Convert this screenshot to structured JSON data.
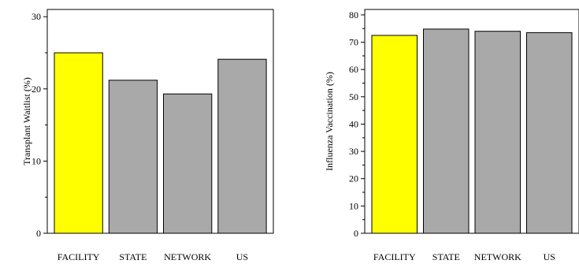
{
  "chart_data": [
    {
      "type": "bar",
      "categories": [
        "FACILITY",
        "STATE",
        "NETWORK",
        "US"
      ],
      "values": [
        25.0,
        21.2,
        19.3,
        24.1
      ],
      "colors": [
        "#ffff00",
        "#a9a9a9",
        "#a9a9a9",
        "#a9a9a9"
      ],
      "ylabel": "Transplant Waitlist (%)",
      "ylim": [
        0,
        31
      ],
      "yticks": [
        0,
        10,
        20,
        30
      ],
      "grid": false
    },
    {
      "type": "bar",
      "categories": [
        "FACILITY",
        "STATE",
        "NETWORK",
        "US"
      ],
      "values": [
        72.5,
        74.8,
        74.0,
        73.5
      ],
      "colors": [
        "#ffff00",
        "#a9a9a9",
        "#a9a9a9",
        "#a9a9a9"
      ],
      "ylabel": "Influenza Vaccination (%)",
      "ylim": [
        0,
        82
      ],
      "yticks": [
        0,
        10,
        20,
        30,
        40,
        50,
        60,
        70,
        80
      ],
      "grid": false
    }
  ]
}
